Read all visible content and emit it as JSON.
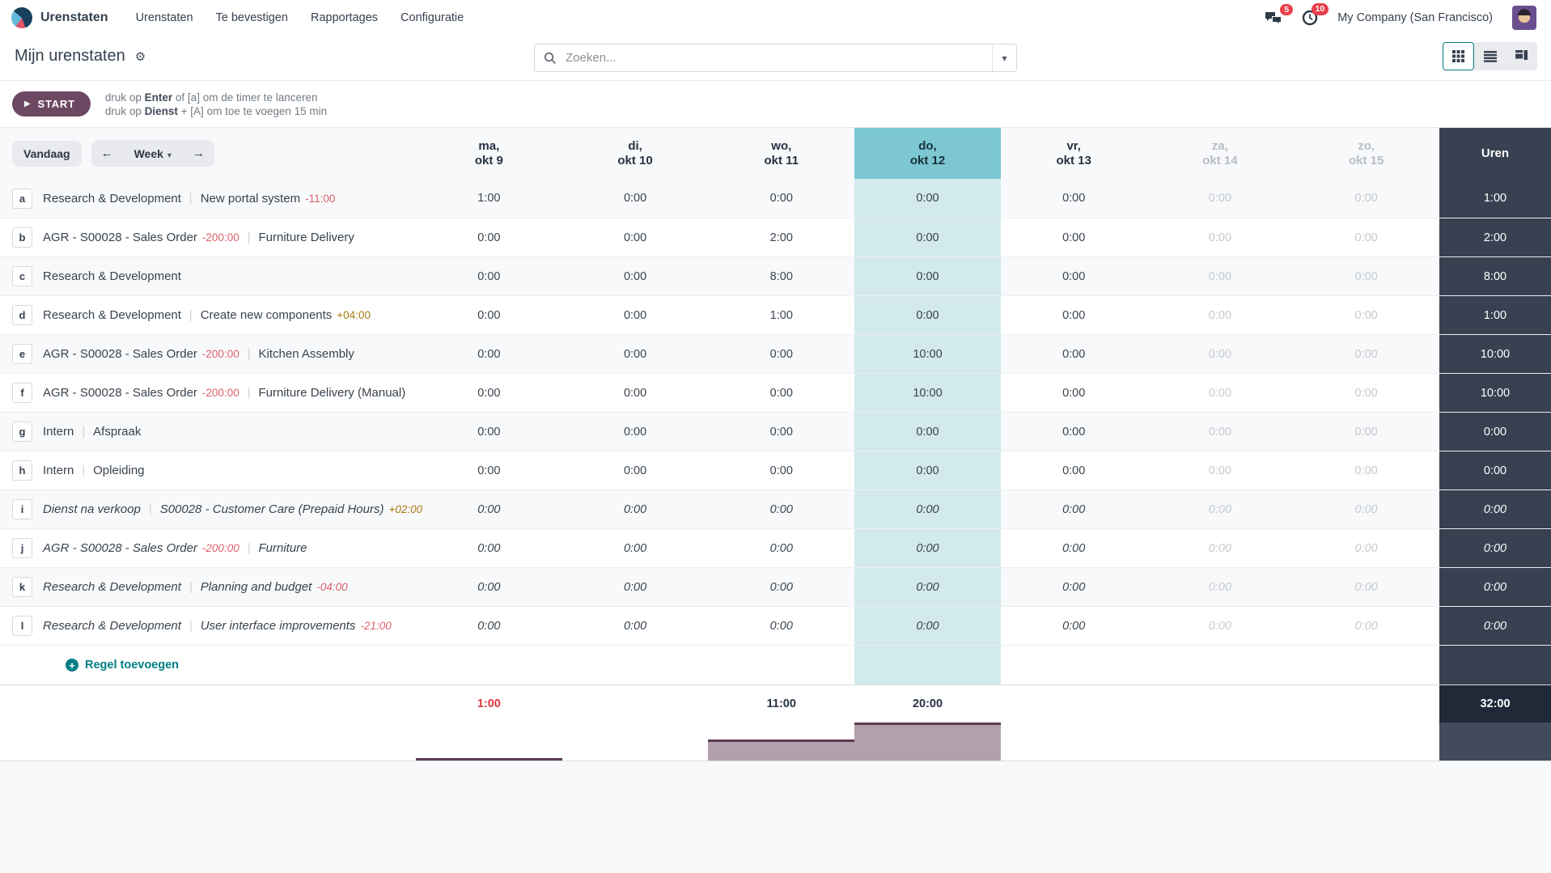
{
  "nav": {
    "brand": "Urenstaten",
    "items": [
      "Urenstaten",
      "Te bevestigen",
      "Rapportages",
      "Configuratie"
    ],
    "messages_badge": "5",
    "activities_badge": "10",
    "company": "My Company (San Francisco)"
  },
  "control": {
    "title": "Mijn urenstaten",
    "search_placeholder": "Zoeken..."
  },
  "timer": {
    "start_label": "START",
    "hint1_pre": "druk op ",
    "hint1_bold": "Enter",
    "hint1_post": " of [a] om de timer te lanceren",
    "hint2_pre": "druk op ",
    "hint2_bold": "Dienst",
    "hint2_post": " + [A] om toe te voegen 15 min"
  },
  "grid": {
    "today_label": "Vandaag",
    "range_label": "Week",
    "hours_label": "Uren",
    "label_separator": "|",
    "today_index": 3,
    "columns": [
      {
        "day": "ma,",
        "date": "okt 9",
        "muted": false,
        "today": false
      },
      {
        "day": "di,",
        "date": "okt 10",
        "muted": false,
        "today": false
      },
      {
        "day": "wo,",
        "date": "okt 11",
        "muted": false,
        "today": false
      },
      {
        "day": "do,",
        "date": "okt 12",
        "muted": false,
        "today": true
      },
      {
        "day": "vr,",
        "date": "okt 13",
        "muted": false,
        "today": false
      },
      {
        "day": "za,",
        "date": "okt 14",
        "muted": true,
        "today": false
      },
      {
        "day": "zo,",
        "date": "okt 15",
        "muted": true,
        "today": false
      }
    ],
    "rows": [
      {
        "letter": "a",
        "project": "Research & Development",
        "project_delta": "",
        "task": "New portal system",
        "task_delta": "-11:00",
        "italic": false,
        "values": [
          "1:00",
          "0:00",
          "0:00",
          "0:00",
          "0:00",
          "0:00",
          "0:00"
        ],
        "total": "1:00"
      },
      {
        "letter": "b",
        "project": "AGR - S00028 - Sales Order",
        "project_delta": "-200:00",
        "task": "Furniture Delivery",
        "task_delta": "",
        "italic": false,
        "values": [
          "0:00",
          "0:00",
          "2:00",
          "0:00",
          "0:00",
          "0:00",
          "0:00"
        ],
        "total": "2:00"
      },
      {
        "letter": "c",
        "project": "Research & Development",
        "project_delta": "",
        "task": "",
        "task_delta": "",
        "italic": false,
        "values": [
          "0:00",
          "0:00",
          "8:00",
          "0:00",
          "0:00",
          "0:00",
          "0:00"
        ],
        "total": "8:00"
      },
      {
        "letter": "d",
        "project": "Research & Development",
        "project_delta": "",
        "task": "Create new components",
        "task_delta": "+04:00",
        "italic": false,
        "values": [
          "0:00",
          "0:00",
          "1:00",
          "0:00",
          "0:00",
          "0:00",
          "0:00"
        ],
        "total": "1:00"
      },
      {
        "letter": "e",
        "project": "AGR - S00028 - Sales Order",
        "project_delta": "-200:00",
        "task": "Kitchen Assembly",
        "task_delta": "",
        "italic": false,
        "values": [
          "0:00",
          "0:00",
          "0:00",
          "10:00",
          "0:00",
          "0:00",
          "0:00"
        ],
        "total": "10:00"
      },
      {
        "letter": "f",
        "project": "AGR - S00028 - Sales Order",
        "project_delta": "-200:00",
        "task": "Furniture Delivery (Manual)",
        "task_delta": "",
        "italic": false,
        "values": [
          "0:00",
          "0:00",
          "0:00",
          "10:00",
          "0:00",
          "0:00",
          "0:00"
        ],
        "total": "10:00"
      },
      {
        "letter": "g",
        "project": "Intern",
        "project_delta": "",
        "task": "Afspraak",
        "task_delta": "",
        "italic": false,
        "values": [
          "0:00",
          "0:00",
          "0:00",
          "0:00",
          "0:00",
          "0:00",
          "0:00"
        ],
        "total": "0:00"
      },
      {
        "letter": "h",
        "project": "Intern",
        "project_delta": "",
        "task": "Opleiding",
        "task_delta": "",
        "italic": false,
        "values": [
          "0:00",
          "0:00",
          "0:00",
          "0:00",
          "0:00",
          "0:00",
          "0:00"
        ],
        "total": "0:00"
      },
      {
        "letter": "i",
        "project": "Dienst na verkoop",
        "project_delta": "",
        "task": "S00028 - Customer Care (Prepaid Hours)",
        "task_delta": "+02:00",
        "italic": true,
        "values": [
          "0:00",
          "0:00",
          "0:00",
          "0:00",
          "0:00",
          "0:00",
          "0:00"
        ],
        "total": "0:00"
      },
      {
        "letter": "j",
        "project": "AGR - S00028 - Sales Order",
        "project_delta": "-200:00",
        "task": "Furniture",
        "task_delta": "",
        "italic": true,
        "values": [
          "0:00",
          "0:00",
          "0:00",
          "0:00",
          "0:00",
          "0:00",
          "0:00"
        ],
        "total": "0:00"
      },
      {
        "letter": "k",
        "project": "Research & Development",
        "project_delta": "",
        "task": "Planning and budget",
        "task_delta": "-04:00",
        "italic": true,
        "values": [
          "0:00",
          "0:00",
          "0:00",
          "0:00",
          "0:00",
          "0:00",
          "0:00"
        ],
        "total": "0:00"
      },
      {
        "letter": "l",
        "project": "Research & Development",
        "project_delta": "",
        "task": "User interface improvements",
        "task_delta": "-21:00",
        "italic": true,
        "values": [
          "0:00",
          "0:00",
          "0:00",
          "0:00",
          "0:00",
          "0:00",
          "0:00"
        ],
        "total": "0:00"
      }
    ],
    "add_line_label": "Regel toevoegen",
    "totals": [
      {
        "value": "1:00",
        "red": true
      },
      {
        "value": "",
        "red": false
      },
      {
        "value": "11:00",
        "red": false
      },
      {
        "value": "20:00",
        "red": false
      },
      {
        "value": "",
        "red": false
      },
      {
        "value": "",
        "red": false
      },
      {
        "value": "",
        "red": false
      }
    ],
    "grand_total": "32:00"
  },
  "chart_data": {
    "type": "bar",
    "title": "",
    "categories": [
      "ma, okt 9",
      "di, okt 10",
      "wo, okt 11",
      "do, okt 12",
      "vr, okt 13",
      "za, okt 14",
      "zo, okt 15"
    ],
    "values": [
      1,
      0,
      11,
      20,
      0,
      0,
      0
    ],
    "value_labels": [
      "1:00",
      "",
      "11:00",
      "20:00",
      "",
      "",
      ""
    ],
    "xlabel": "",
    "ylabel": "",
    "ylim": [
      0,
      20
    ],
    "legend": false,
    "grid": false
  },
  "colors": {
    "accent_teal": "#017e84",
    "today_header": "#7cc7d2",
    "today_cell": "#d2e9ed",
    "start_button": "#6d4862",
    "hours_column": "#374151",
    "grand_total_bg": "#1f2937",
    "bar_fill": "#b2a0ad",
    "bar_border": "#5c3a52",
    "negative_delta": "#de6069",
    "positive_delta": "#a8790e",
    "warning_total": "#e0383e",
    "badge_red": "#e7404a"
  }
}
